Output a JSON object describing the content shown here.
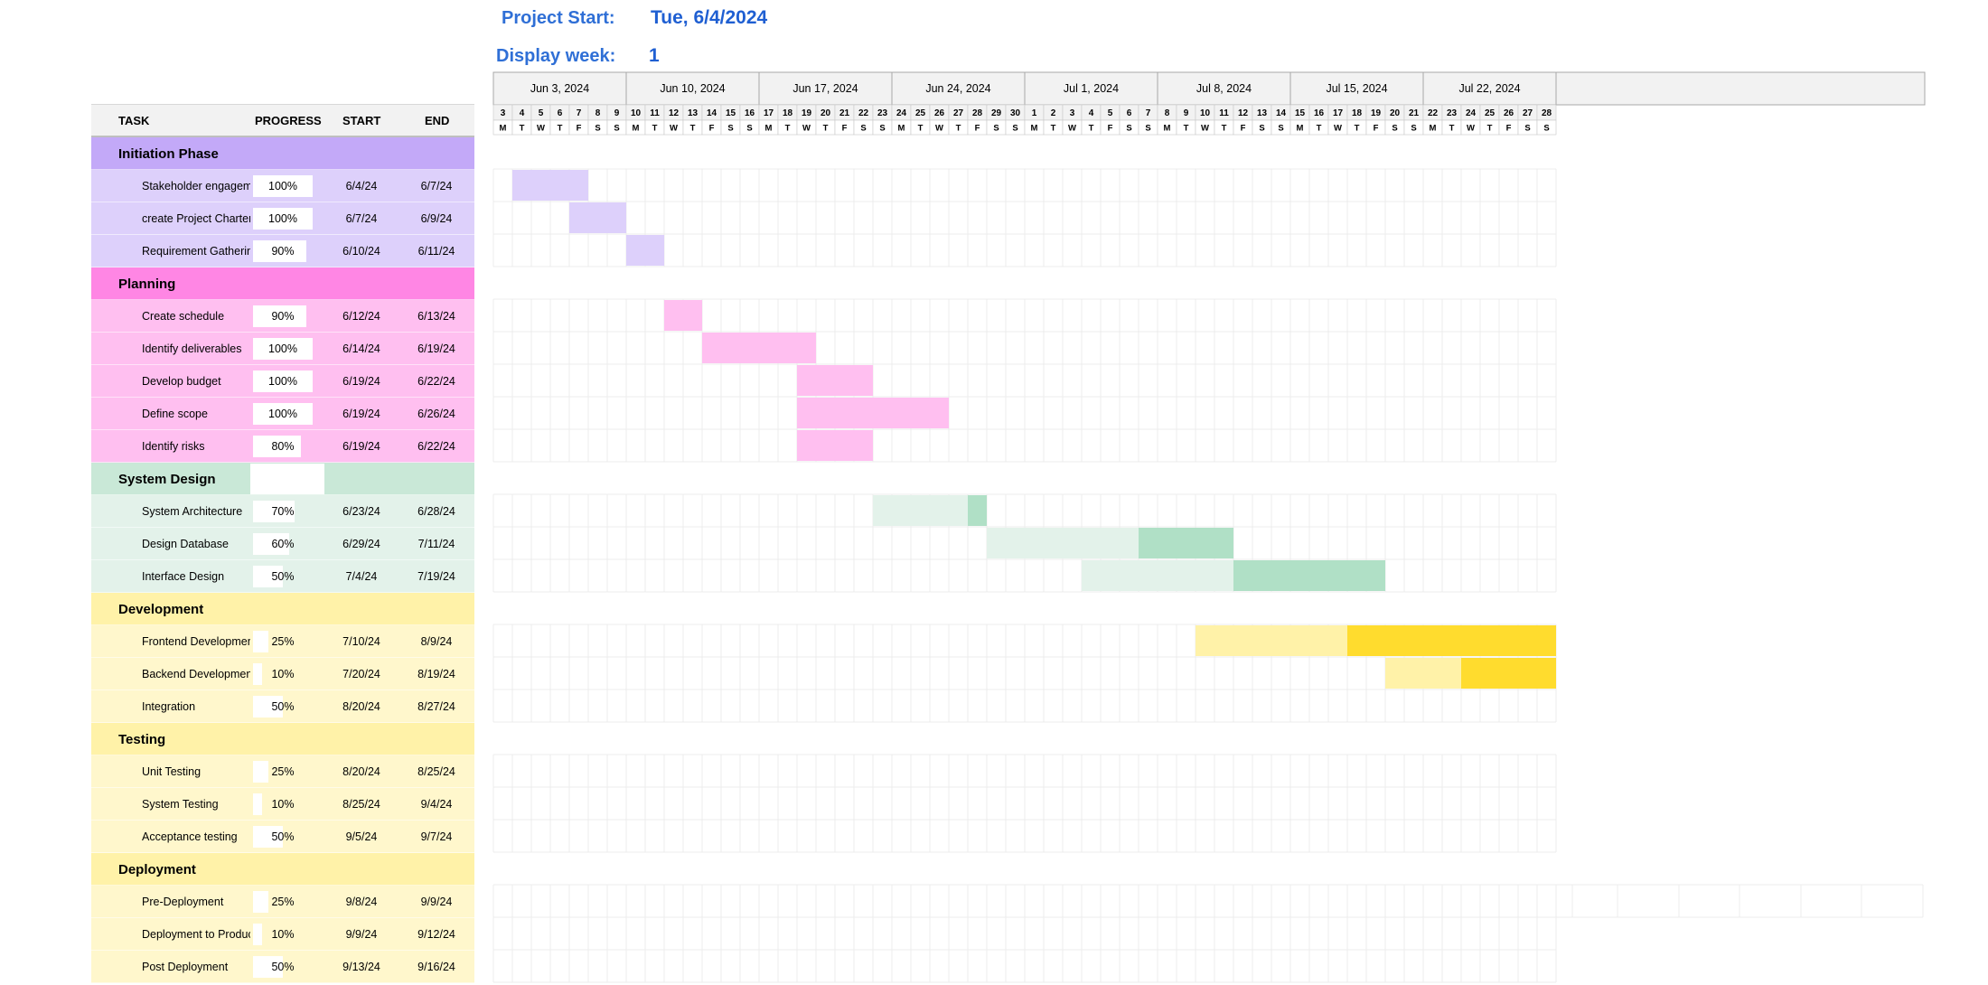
{
  "header": {
    "project_start_label": "Project Start:",
    "project_start_value": "Tue, 6/4/2024",
    "display_week_label": "Display week:",
    "display_week_value": "1"
  },
  "columns": {
    "task": "TASK",
    "progress": "PROGRESS",
    "start": "START",
    "end": "END"
  },
  "timeline": {
    "first_day": "2024-06-03",
    "num_days": 56,
    "weeks": [
      "Jun 3, 2024",
      "Jun 10, 2024",
      "Jun 17, 2024",
      "Jun 24, 2024",
      "Jul 1, 2024",
      "Jul 8, 2024",
      "Jul 15, 2024",
      "Jul 22, 2024"
    ],
    "day_numbers": [
      "3",
      "4",
      "5",
      "6",
      "7",
      "8",
      "9",
      "10",
      "11",
      "12",
      "13",
      "14",
      "15",
      "16",
      "17",
      "18",
      "19",
      "20",
      "21",
      "22",
      "23",
      "24",
      "25",
      "26",
      "27",
      "28",
      "29",
      "30",
      "1",
      "2",
      "3",
      "4",
      "5",
      "6",
      "7",
      "8",
      "9",
      "10",
      "11",
      "12",
      "13",
      "14",
      "15",
      "16",
      "17",
      "18",
      "19",
      "20",
      "21",
      "22",
      "23",
      "24",
      "25",
      "26",
      "27",
      "28"
    ],
    "day_letters": [
      "M",
      "T",
      "W",
      "T",
      "F",
      "S",
      "S"
    ]
  },
  "phases": [
    {
      "name": "Initiation Phase",
      "header_color": "#c3a9f8",
      "row_color": "#ddd0fb",
      "bar_color": "#ddd0fb",
      "done_color": "#a98af2",
      "tasks": [
        {
          "name": "Stakeholder engagement",
          "progress": "100%",
          "start": "6/4/24",
          "end": "6/7/24"
        },
        {
          "name": "create Project Charter",
          "progress": "100%",
          "start": "6/7/24",
          "end": "6/9/24"
        },
        {
          "name": "Requirement Gathering",
          "progress": "90%",
          "start": "6/10/24",
          "end": "6/11/24"
        }
      ]
    },
    {
      "name": "Planning",
      "header_color": "#ff86e4",
      "row_color": "#ffbff0",
      "bar_color": "#ffbff0",
      "done_color": "#ff4fd2",
      "tasks": [
        {
          "name": "Create schedule",
          "progress": "90%",
          "start": "6/12/24",
          "end": "6/13/24"
        },
        {
          "name": "Identify deliverables",
          "progress": "100%",
          "start": "6/14/24",
          "end": "6/19/24"
        },
        {
          "name": "Develop budget",
          "progress": "100%",
          "start": "6/19/24",
          "end": "6/22/24"
        },
        {
          "name": "Define scope",
          "progress": "100%",
          "start": "6/19/24",
          "end": "6/26/24"
        },
        {
          "name": "Identify risks",
          "progress": "80%",
          "start": "6/19/24",
          "end": "6/22/24"
        }
      ]
    },
    {
      "name": "System Design",
      "header_color": "#c9e8d7",
      "row_color": "#e3f2ea",
      "bar_color": "#e3f2ea",
      "done_color": "#b0e0c6",
      "tasks": [
        {
          "name": "System Architecture",
          "progress": "70%",
          "start": "6/23/24",
          "end": "6/28/24"
        },
        {
          "name": "Design Database",
          "progress": "60%",
          "start": "6/29/24",
          "end": "7/11/24"
        },
        {
          "name": "Interface Design",
          "progress": "50%",
          "start": "7/4/24",
          "end": "7/19/24"
        }
      ]
    },
    {
      "name": "Development",
      "header_color": "#fff2a8",
      "row_color": "#fff7cc",
      "bar_color": "#fff2a8",
      "done_color": "#ffdc2e",
      "tasks": [
        {
          "name": "Frontend Development",
          "progress": "25%",
          "start": "7/10/24",
          "end": "8/9/24"
        },
        {
          "name": "Backend Development",
          "progress": "10%",
          "start": "7/20/24",
          "end": "8/19/24"
        },
        {
          "name": "Integration",
          "progress": "50%",
          "start": "8/20/24",
          "end": "8/27/24"
        }
      ]
    },
    {
      "name": "Testing",
      "header_color": "#fff2a8",
      "row_color": "#fff7cc",
      "bar_color": "#fff2a8",
      "done_color": "#ffdc2e",
      "tasks": [
        {
          "name": "Unit Testing",
          "progress": "25%",
          "start": "8/20/24",
          "end": "8/25/24"
        },
        {
          "name": "System Testing",
          "progress": "10%",
          "start": "8/25/24",
          "end": "9/4/24"
        },
        {
          "name": "Acceptance testing",
          "progress": "50%",
          "start": "9/5/24",
          "end": "9/7/24"
        }
      ]
    },
    {
      "name": "Deployment",
      "header_color": "#fff2a8",
      "row_color": "#fff7cc",
      "bar_color": "#fff2a8",
      "done_color": "#ffdc2e",
      "tasks": [
        {
          "name": "Pre-Deployment",
          "progress": "25%",
          "start": "9/8/24",
          "end": "9/9/24"
        },
        {
          "name": "Deployment to Production",
          "progress": "10%",
          "start": "9/9/24",
          "end": "9/12/24"
        },
        {
          "name": "Post Deployment",
          "progress": "50%",
          "start": "9/13/24",
          "end": "9/16/24"
        }
      ]
    }
  ]
}
